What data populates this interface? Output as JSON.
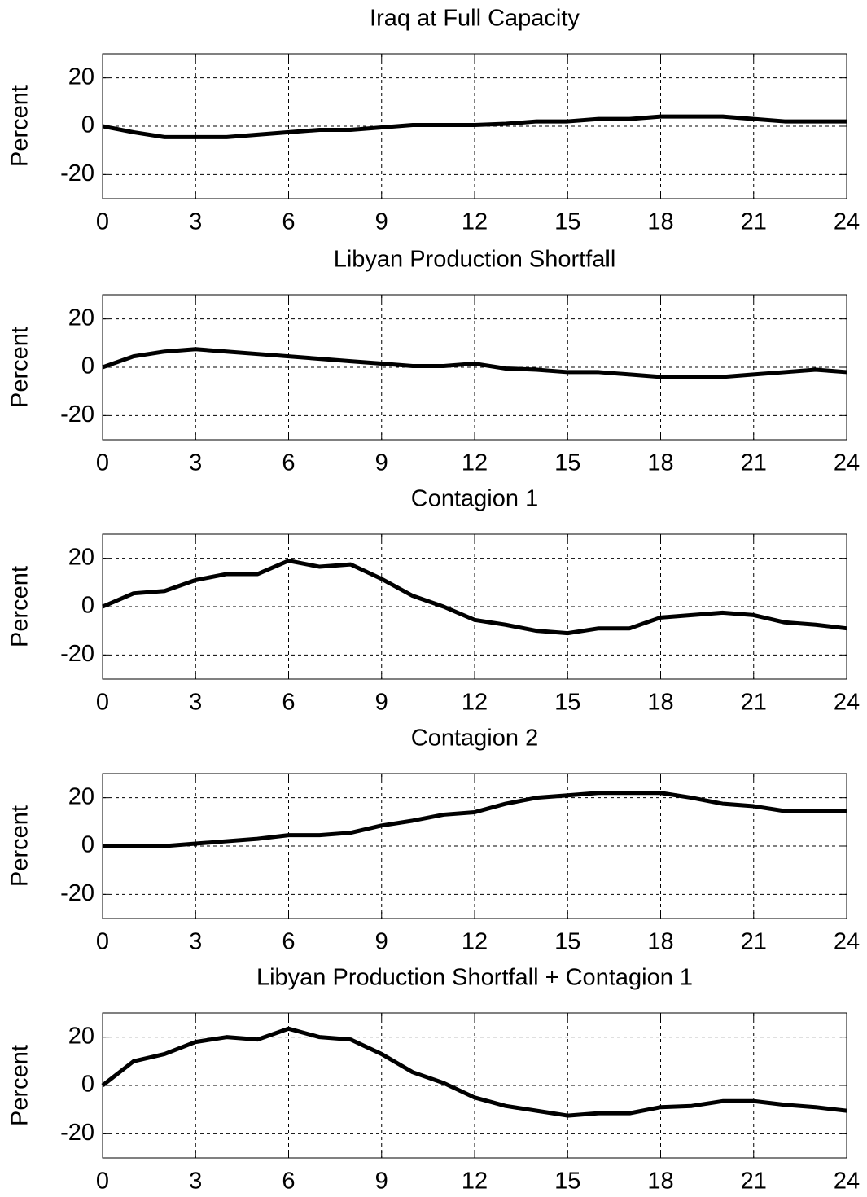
{
  "chart_data": [
    {
      "type": "line",
      "title": "Iraq at Full Capacity",
      "ylabel": "Percent",
      "x": [
        0,
        1,
        2,
        3,
        4,
        5,
        6,
        7,
        8,
        9,
        10,
        11,
        12,
        13,
        14,
        15,
        16,
        17,
        18,
        19,
        20,
        21,
        22,
        23,
        24
      ],
      "series": [
        {
          "color": "#000000",
          "values": [
            0,
            -2.5,
            -4.5,
            -4.5,
            -4.5,
            -3.5,
            -2.5,
            -1.5,
            -1.5,
            -0.5,
            0.5,
            0.5,
            0.5,
            1,
            2,
            2,
            3,
            3,
            4,
            4,
            4,
            3,
            2,
            2,
            2
          ]
        }
      ],
      "xlim": [
        0,
        24
      ],
      "xticks": [
        0,
        3,
        6,
        9,
        12,
        15,
        18,
        21,
        24
      ],
      "ylim": [
        -30,
        30
      ],
      "yticks": [
        -20,
        0,
        20
      ],
      "grid": true
    },
    {
      "type": "line",
      "title": "Libyan Production Shortfall",
      "ylabel": "Percent",
      "x": [
        0,
        1,
        2,
        3,
        4,
        5,
        6,
        7,
        8,
        9,
        10,
        11,
        12,
        13,
        14,
        15,
        16,
        17,
        18,
        19,
        20,
        21,
        22,
        23,
        24
      ],
      "series": [
        {
          "color": "#000000",
          "values": [
            0,
            4.5,
            6.5,
            7.5,
            6.5,
            5.5,
            4.5,
            3.5,
            2.5,
            1.5,
            0.5,
            0.5,
            1.5,
            -0.5,
            -1,
            -2,
            -2,
            -3,
            -4,
            -4,
            -4,
            -3,
            -2,
            -1,
            -2
          ]
        }
      ],
      "xlim": [
        0,
        24
      ],
      "xticks": [
        0,
        3,
        6,
        9,
        12,
        15,
        18,
        21,
        24
      ],
      "ylim": [
        -30,
        30
      ],
      "yticks": [
        -20,
        0,
        20
      ],
      "grid": true
    },
    {
      "type": "line",
      "title": "Contagion 1",
      "ylabel": "Percent",
      "x": [
        0,
        1,
        2,
        3,
        4,
        5,
        6,
        7,
        8,
        9,
        10,
        11,
        12,
        13,
        14,
        15,
        16,
        17,
        18,
        19,
        20,
        21,
        22,
        23,
        24
      ],
      "series": [
        {
          "color": "#000000",
          "values": [
            0,
            5.5,
            6.5,
            11,
            13.5,
            13.5,
            19,
            16.5,
            17.5,
            11.5,
            4.5,
            0,
            -5.5,
            -7.5,
            -10,
            -11,
            -9,
            -9,
            -4.5,
            -3.5,
            -2.5,
            -3.5,
            -6.5,
            -7.5,
            -9
          ]
        }
      ],
      "xlim": [
        0,
        24
      ],
      "xticks": [
        0,
        3,
        6,
        9,
        12,
        15,
        18,
        21,
        24
      ],
      "ylim": [
        -30,
        30
      ],
      "yticks": [
        -20,
        0,
        20
      ],
      "grid": true
    },
    {
      "type": "line",
      "title": "Contagion 2",
      "ylabel": "Percent",
      "x": [
        0,
        1,
        2,
        3,
        4,
        5,
        6,
        7,
        8,
        9,
        10,
        11,
        12,
        13,
        14,
        15,
        16,
        17,
        18,
        19,
        20,
        21,
        22,
        23,
        24
      ],
      "series": [
        {
          "color": "#000000",
          "values": [
            0,
            0,
            0,
            1,
            2,
            3,
            4.5,
            4.5,
            5.5,
            8.5,
            10.5,
            13,
            14,
            17.5,
            20,
            21,
            22,
            22,
            22,
            20,
            17.5,
            16.5,
            14.5,
            14.5,
            14.5
          ]
        }
      ],
      "xlim": [
        0,
        24
      ],
      "xticks": [
        0,
        3,
        6,
        9,
        12,
        15,
        18,
        21,
        24
      ],
      "ylim": [
        -30,
        30
      ],
      "yticks": [
        -20,
        0,
        20
      ],
      "grid": true
    },
    {
      "type": "line",
      "title": "Libyan Production Shortfall + Contagion 1",
      "ylabel": "Percent",
      "x": [
        0,
        1,
        2,
        3,
        4,
        5,
        6,
        7,
        8,
        9,
        10,
        11,
        12,
        13,
        14,
        15,
        16,
        17,
        18,
        19,
        20,
        21,
        22,
        23,
        24
      ],
      "series": [
        {
          "color": "#000000",
          "values": [
            0,
            10,
            13,
            18,
            20,
            19,
            23.5,
            20,
            19,
            13,
            5.5,
            1,
            -5,
            -8.5,
            -10.5,
            -12.5,
            -11.5,
            -11.5,
            -9,
            -8.5,
            -6.5,
            -6.5,
            -8,
            -9,
            -10.5
          ]
        }
      ],
      "xlim": [
        0,
        24
      ],
      "xticks": [
        0,
        3,
        6,
        9,
        12,
        15,
        18,
        21,
        24
      ],
      "ylim": [
        -30,
        30
      ],
      "yticks": [
        -20,
        0,
        20
      ],
      "grid": true
    }
  ]
}
